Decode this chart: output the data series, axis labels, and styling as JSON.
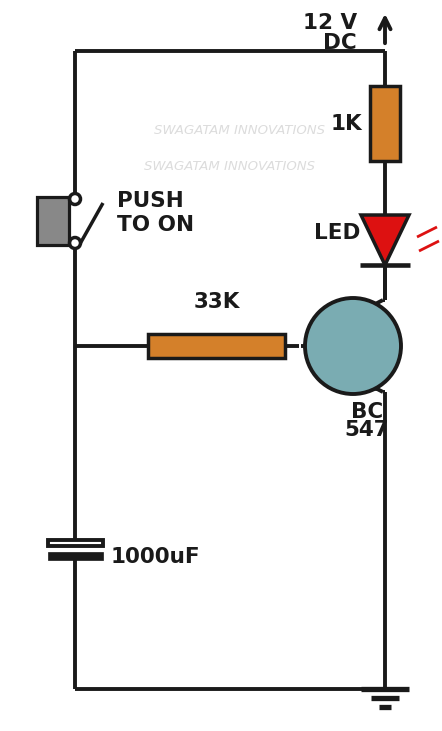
{
  "bg_color": "#ffffff",
  "line_color": "#1a1a1a",
  "line_width": 2.8,
  "resistor_color": "#d4802a",
  "transistor_body_color": "#7aacb2",
  "led_color": "#dd1111",
  "switch_body_color": "#888888",
  "watermark1": "SWAGATAM INNOVATIONS",
  "watermark2": "SWAGATAM INNOVATIONS",
  "label_1k": "1K",
  "label_33k": "33K",
  "label_1000uf": "1000uF",
  "label_led": "LED",
  "label_bc547_1": "BC",
  "label_bc547_2": "547",
  "label_push": "PUSH\nTO ON",
  "label_12v_1": "12 V",
  "label_12v_2": "DC",
  "figsize": [
    4.42,
    7.31
  ],
  "dpi": 100,
  "xlim": [
    0,
    442
  ],
  "ylim": [
    0,
    731
  ]
}
